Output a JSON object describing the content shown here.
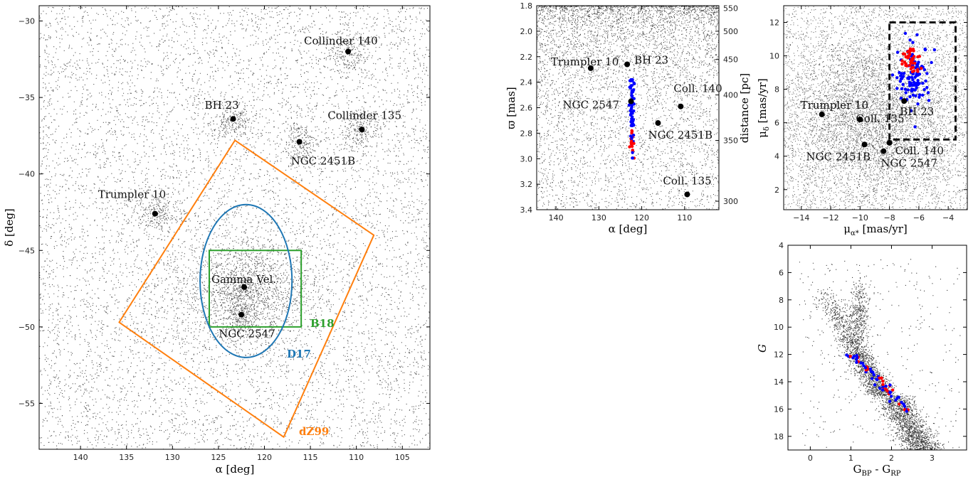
{
  "chart_data": [
    {
      "id": "sky",
      "type": "scatter",
      "xlabel": "α [deg]",
      "ylabel": "δ [deg]",
      "xlim": [
        144.5,
        102
      ],
      "ylim": [
        -58,
        -29
      ],
      "xticks": [
        140,
        135,
        130,
        125,
        120,
        115,
        110,
        105
      ],
      "yticks": [
        -30,
        -35,
        -40,
        -45,
        -50,
        -55
      ],
      "clusters": [
        {
          "name": "Collinder 140",
          "x": 110.9,
          "y": -32.0
        },
        {
          "name": "BH 23",
          "x": 123.4,
          "y": -36.4
        },
        {
          "name": "Collinder 135",
          "x": 109.4,
          "y": -37.1
        },
        {
          "name": "NGC 2451B",
          "x": 116.2,
          "y": -37.9
        },
        {
          "name": "Trumpler 10",
          "x": 131.9,
          "y": -42.6
        },
        {
          "name": "Gamma Vel.",
          "x": 122.2,
          "y": -47.4
        },
        {
          "name": "NGC 2547",
          "x": 122.5,
          "y": -49.2
        }
      ],
      "regions": [
        {
          "name": "B18",
          "color": "#2ca02c",
          "shape": "box",
          "x": [
            126,
            116
          ],
          "y": [
            -45,
            -50
          ]
        },
        {
          "name": "D17",
          "color": "#1f77b4",
          "shape": "circle",
          "center": [
            122.0,
            -47.0
          ],
          "radius": 5.0
        },
        {
          "name": "dZ99",
          "color": "#ff7f0e",
          "shape": "polygon",
          "points": [
            [
              123.2,
              -37.8
            ],
            [
              108.1,
              -44.0
            ],
            [
              117.9,
              -57.2
            ],
            [
              135.8,
              -49.7
            ]
          ]
        }
      ]
    },
    {
      "id": "parallax",
      "type": "scatter",
      "xlabel": "α [deg]",
      "ylabel": "ϖ [mas]",
      "y2label": "distance [pc]",
      "xlim": [
        144.5,
        102
      ],
      "ylim": [
        3.4,
        1.8
      ],
      "xticks": [
        140,
        130,
        120,
        110
      ],
      "yticks": [
        1.8,
        2.0,
        2.2,
        2.4,
        2.6,
        2.8,
        3.0,
        3.2,
        3.4
      ],
      "y2ticks": [
        300,
        350,
        400,
        450,
        500,
        550
      ],
      "clusters": [
        {
          "name": "Trumpler 10",
          "x": 131.9,
          "y": 2.29
        },
        {
          "name": "BH 23",
          "x": 123.4,
          "y": 2.26
        },
        {
          "name": "Coll. 140",
          "x": 110.9,
          "y": 2.59
        },
        {
          "name": "NGC 2547",
          "x": 122.5,
          "y": 2.55
        },
        {
          "name": "NGC 2451B",
          "x": 116.2,
          "y": 2.72
        },
        {
          "name": "Coll. 135",
          "x": 109.4,
          "y": 3.28
        }
      ]
    },
    {
      "id": "propermotion",
      "type": "scatter",
      "xlabel": "μα* [mas/yr]",
      "ylabel": "μδ [mas/yr]",
      "xlim": [
        -15.2,
        -2.7
      ],
      "ylim": [
        0.8,
        13
      ],
      "xticks": [
        -14,
        -12,
        -10,
        -8,
        -6,
        -4
      ],
      "yticks": [
        2,
        4,
        6,
        8,
        10,
        12
      ],
      "selection_box": {
        "x": [
          -8.0,
          -3.5
        ],
        "y": [
          5.0,
          12.0
        ]
      },
      "clusters": [
        {
          "name": "Trumpler 10",
          "x": -12.6,
          "y": 6.5
        },
        {
          "name": "Coll. 135",
          "x": -10.0,
          "y": 6.2
        },
        {
          "name": "BH 23",
          "x": -7.0,
          "y": 7.3
        },
        {
          "name": "Coll. 140",
          "x": -8.0,
          "y": 4.8
        },
        {
          "name": "NGC 2451B",
          "x": -9.7,
          "y": 4.7
        },
        {
          "name": "NGC 2547",
          "x": -8.4,
          "y": 4.3
        }
      ]
    },
    {
      "id": "cmd",
      "type": "scatter",
      "xlabel": "GBP - GRP",
      "ylabel": "G",
      "xlim": [
        -0.55,
        3.85
      ],
      "ylim": [
        19,
        4
      ],
      "xticks": [
        0,
        1,
        2,
        3
      ],
      "yticks": [
        4,
        6,
        8,
        10,
        12,
        14,
        16,
        18
      ]
    }
  ]
}
